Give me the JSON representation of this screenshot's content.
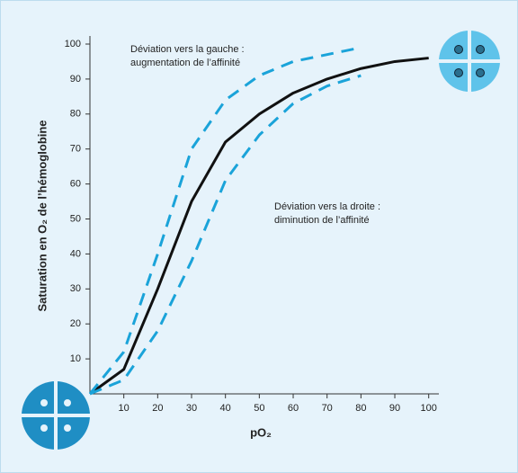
{
  "chart_data": {
    "type": "line",
    "xlabel": "pO₂",
    "ylabel": "Saturation en O₂ de l’hémoglobine",
    "annotations": [
      [
        "Déviation vers la gauche :",
        "augmentation de l’affinité"
      ],
      [
        "Déviation vers la droite :",
        "diminution de l’affinité"
      ]
    ],
    "x": [
      0,
      10,
      20,
      30,
      40,
      50,
      60,
      70,
      80,
      90,
      100
    ],
    "series": [
      {
        "color": "#111111",
        "dashed": false,
        "values": [
          0,
          7,
          30,
          55,
          72,
          80,
          86,
          90,
          93,
          95,
          96
        ]
      },
      {
        "color": "#1aa3d9",
        "dashed": true,
        "values": [
          0,
          12,
          40,
          70,
          84,
          91,
          95,
          97,
          99,
          null,
          null
        ]
      },
      {
        "color": "#1aa3d9",
        "dashed": true,
        "values": [
          0,
          4,
          18,
          38,
          61,
          74,
          83,
          88,
          91,
          null,
          null
        ]
      }
    ],
    "xlim": [
      0,
      103
    ],
    "ylim": [
      0,
      100
    ],
    "xticks": [
      10,
      20,
      30,
      40,
      50,
      60,
      70,
      80,
      90,
      100
    ],
    "yticks": [
      10,
      20,
      30,
      40,
      50,
      60,
      70,
      80,
      90,
      100
    ]
  }
}
